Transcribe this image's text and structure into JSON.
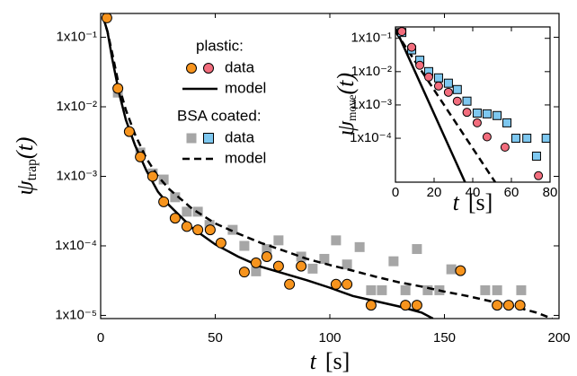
{
  "chart_data": [
    {
      "type": "scatter",
      "xlabel": {
        "symbol": "t",
        "unit": "[s]"
      },
      "ylabel": {
        "symbol": "ψ",
        "subscript": "trap",
        "argument": "(t)"
      },
      "xlim": [
        0,
        200
      ],
      "ylim": [
        9e-06,
        0.22
      ],
      "yscale": "log",
      "xticks": [
        0,
        50,
        100,
        150,
        200
      ],
      "yticks": [
        {
          "value": 1e-05,
          "label": "1x10⁻⁵"
        },
        {
          "value": 0.0001,
          "label": "1x10⁻⁴"
        },
        {
          "value": 0.001,
          "label": "1x10⁻³"
        },
        {
          "value": 0.01,
          "label": "1x10⁻²"
        },
        {
          "value": 0.1,
          "label": "1x10⁻¹"
        }
      ],
      "series": [
        {
          "marker": "square",
          "color": "#a6a6a6",
          "x": [
            7.5,
            17.3,
            22.7,
            27.5,
            32.5,
            37.6,
            42.4,
            47.5,
            57.6,
            62.7,
            67.8,
            72.5,
            77.6,
            87.5,
            92.5,
            97.6,
            102.7,
            107.5,
            113,
            118,
            122.7,
            127.8,
            133,
            138,
            142.7,
            147.8,
            153,
            167.8,
            173,
            183.5
          ],
          "values": [
            0.016,
            0.0022,
            0.0011,
            0.0009,
            0.0005,
            0.00031,
            0.00031,
            0.0002,
            0.00017,
            0.0001,
            4.3e-05,
            9e-05,
            0.00012,
            7e-05,
            4.7e-05,
            6.5e-05,
            0.00012,
            5.4e-05,
            9.6e-05,
            2.3e-05,
            2.3e-05,
            6e-05,
            2.3e-05,
            9e-05,
            2.3e-05,
            2.3e-05,
            4.6e-05,
            2.3e-05,
            2.3e-05,
            2.3e-05
          ]
        },
        {
          "line": "dashed",
          "color": "#000000",
          "x": [
            1,
            3,
            5,
            8,
            11,
            15,
            20,
            25,
            30,
            40,
            50,
            60,
            70,
            80,
            90,
            100,
            110,
            120,
            130,
            140,
            150,
            160,
            170,
            180,
            190,
            197
          ],
          "values": [
            0.2,
            0.12,
            0.06,
            0.02,
            0.009,
            0.004,
            0.0018,
            0.001,
            0.00065,
            0.00034,
            0.00021,
            0.00015,
            0.00011,
            8.5e-05,
            6.5e-05,
            5.3e-05,
            4.4e-05,
            3.6e-05,
            3e-05,
            2.6e-05,
            2.2e-05,
            1.9e-05,
            1.6e-05,
            1.35e-05,
            1.1e-05,
            9e-06
          ]
        },
        {
          "line": "solid",
          "color": "#000000",
          "x": [
            1,
            3,
            5,
            8,
            11,
            15,
            20,
            25,
            30,
            40,
            50,
            60,
            70,
            80,
            90,
            100,
            110,
            120,
            130,
            140,
            145
          ],
          "values": [
            0.2,
            0.12,
            0.05,
            0.016,
            0.0065,
            0.0028,
            0.0012,
            0.0006,
            0.00038,
            0.00018,
            0.000105,
            7e-05,
            5e-05,
            4e-05,
            3.2e-05,
            2.5e-05,
            1.9e-05,
            1.6e-05,
            1.35e-05,
            1.1e-05,
            9e-06
          ]
        },
        {
          "marker": "circle",
          "color": "#f7941d",
          "x": [
            2.7,
            7.5,
            12.5,
            17.3,
            22.7,
            27.5,
            32.5,
            37.6,
            42.4,
            47.8,
            52.5,
            62.7,
            67.8,
            72.5,
            77.6,
            82.4,
            87.5,
            102.7,
            107.5,
            118,
            133,
            138,
            157,
            173,
            178,
            183
          ],
          "values": [
            0.19,
            0.0184,
            0.0044,
            0.0019,
            0.001,
            0.00043,
            0.00025,
            0.00019,
            0.00017,
            0.00017,
            0.00011,
            4.2e-05,
            5.7e-05,
            7e-05,
            5.1e-05,
            2.8e-05,
            5.1e-05,
            2.8e-05,
            2.8e-05,
            1.4e-05,
            1.4e-05,
            1.4e-05,
            4.4e-05,
            1.4e-05,
            1.4e-05,
            1.4e-05
          ]
        }
      ],
      "legend": [
        {
          "title": "plastic:",
          "entries": [
            {
              "label": "data",
              "marker": "circle",
              "colors": [
                "#f7941d",
                "#f26d7d"
              ]
            },
            {
              "label": "model",
              "line": "solid"
            }
          ]
        },
        {
          "title": "BSA coated:",
          "entries": [
            {
              "label": "data",
              "marker": "square",
              "colors": [
                "#a6a6a6",
                "#7ec8f0"
              ]
            },
            {
              "label": "model",
              "line": "dashed"
            }
          ]
        }
      ]
    },
    {
      "type": "scatter",
      "xlabel": {
        "symbol": "t",
        "unit": "[s]"
      },
      "ylabel": {
        "symbol": "ψ",
        "subscript": "move",
        "argument": "(t)"
      },
      "xlim": [
        0,
        80
      ],
      "ylim": [
        4.8e-06,
        0.22
      ],
      "yscale": "log",
      "xticks": [
        0,
        20,
        40,
        60,
        80
      ],
      "yticks": [
        {
          "value": 0.0001,
          "label": "1x10⁻⁴"
        },
        {
          "value": 0.001,
          "label": "1x10⁻³"
        },
        {
          "value": 0.01,
          "label": "1x10⁻²"
        },
        {
          "value": 0.1,
          "label": "1x10⁻¹"
        }
      ],
      "series": [
        {
          "line": "solid",
          "color": "#000000",
          "x": [
            0,
            36
          ],
          "values": [
            0.2,
            4.8e-06
          ]
        },
        {
          "line": "dashed",
          "color": "#000000",
          "x": [
            0,
            51.6
          ],
          "values": [
            0.16,
            4.8e-06
          ]
        },
        {
          "marker": "square",
          "color": "#7ec8f0",
          "x": [
            3.3,
            8.4,
            12.6,
            17.2,
            22.3,
            27.4,
            32,
            37,
            42.3,
            47.4,
            52.6,
            57.7,
            62.3,
            68,
            73,
            78
          ],
          "values": [
            0.15,
            0.045,
            0.022,
            0.01,
            0.0065,
            0.0045,
            0.0029,
            0.0013,
            0.00057,
            0.00054,
            0.00048,
            0.00029,
            0.0001,
            0.0001,
            2.9e-05,
            0.0001
          ]
        },
        {
          "marker": "circle",
          "color": "#f26d7d",
          "x": [
            3.3,
            8.4,
            12.6,
            17.2,
            22.3,
            27.4,
            32,
            37,
            42.3,
            47.4,
            56.7,
            74
          ],
          "values": [
            0.16,
            0.054,
            0.0155,
            0.0069,
            0.0037,
            0.0024,
            0.0013,
            0.0006,
            0.00029,
            0.00011,
            5.4e-05,
            7.5e-06
          ]
        }
      ]
    }
  ]
}
